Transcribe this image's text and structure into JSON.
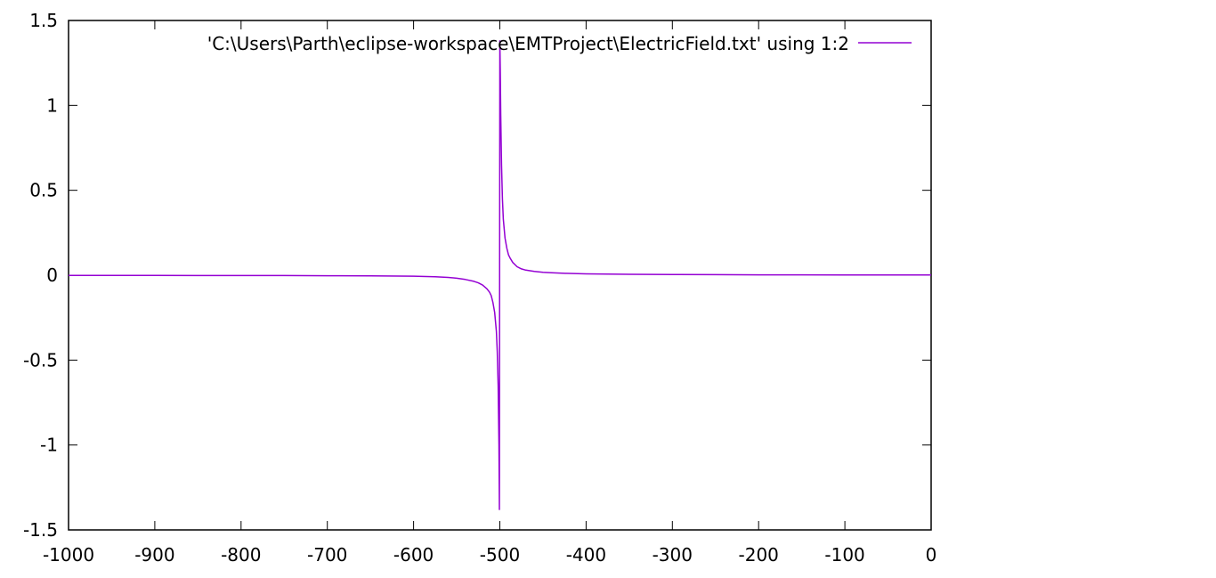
{
  "chart_data": {
    "type": "line",
    "title": "",
    "xlabel": "",
    "ylabel": "",
    "xlim": [
      -1000,
      0
    ],
    "ylim": [
      -1.5,
      1.5
    ],
    "xticks": [
      "-1000",
      "-900",
      "-800",
      "-700",
      "-600",
      "-500",
      "-400",
      "-300",
      "-200",
      "-100",
      "0"
    ],
    "yticks": [
      "1.5",
      "1",
      "0.5",
      "0",
      "-0.5",
      "-1",
      "-1.5"
    ],
    "grid": false,
    "legend_position": "top-right",
    "series": [
      {
        "name": "'C:\\Users\\Parth\\eclipse-workspace\\EMTProject\\ElectricField.txt' using 1:2",
        "color": "#9400d3",
        "x": [
          -1000,
          -950,
          -900,
          -850,
          -800,
          -750,
          -700,
          -650,
          -600,
          -575,
          -560,
          -550,
          -540,
          -530,
          -525,
          -520,
          -515,
          -512,
          -510,
          -508,
          -506,
          -504,
          -503,
          -502,
          -501,
          -500.5,
          -500,
          -499.5,
          -499,
          -498,
          -497,
          -496,
          -494,
          -492,
          -490,
          -488,
          -485,
          -480,
          -475,
          -470,
          -460,
          -450,
          -440,
          -425,
          -400,
          -350,
          -300,
          -250,
          -200,
          -150,
          -100,
          -50,
          0
        ],
        "y": [
          -0.001,
          -0.001,
          -0.001,
          -0.002,
          -0.002,
          -0.002,
          -0.003,
          -0.004,
          -0.006,
          -0.009,
          -0.013,
          -0.018,
          -0.025,
          -0.036,
          -0.045,
          -0.058,
          -0.08,
          -0.1,
          -0.12,
          -0.16,
          -0.22,
          -0.33,
          -0.45,
          -0.65,
          -1.0,
          -1.38,
          1.38,
          1.2,
          0.95,
          0.65,
          0.45,
          0.33,
          0.22,
          0.16,
          0.12,
          0.1,
          0.075,
          0.05,
          0.037,
          0.03,
          0.022,
          0.017,
          0.014,
          0.011,
          0.008,
          0.005,
          0.004,
          0.003,
          0.002,
          0.002,
          0.001,
          0.001,
          0.001
        ]
      }
    ]
  }
}
